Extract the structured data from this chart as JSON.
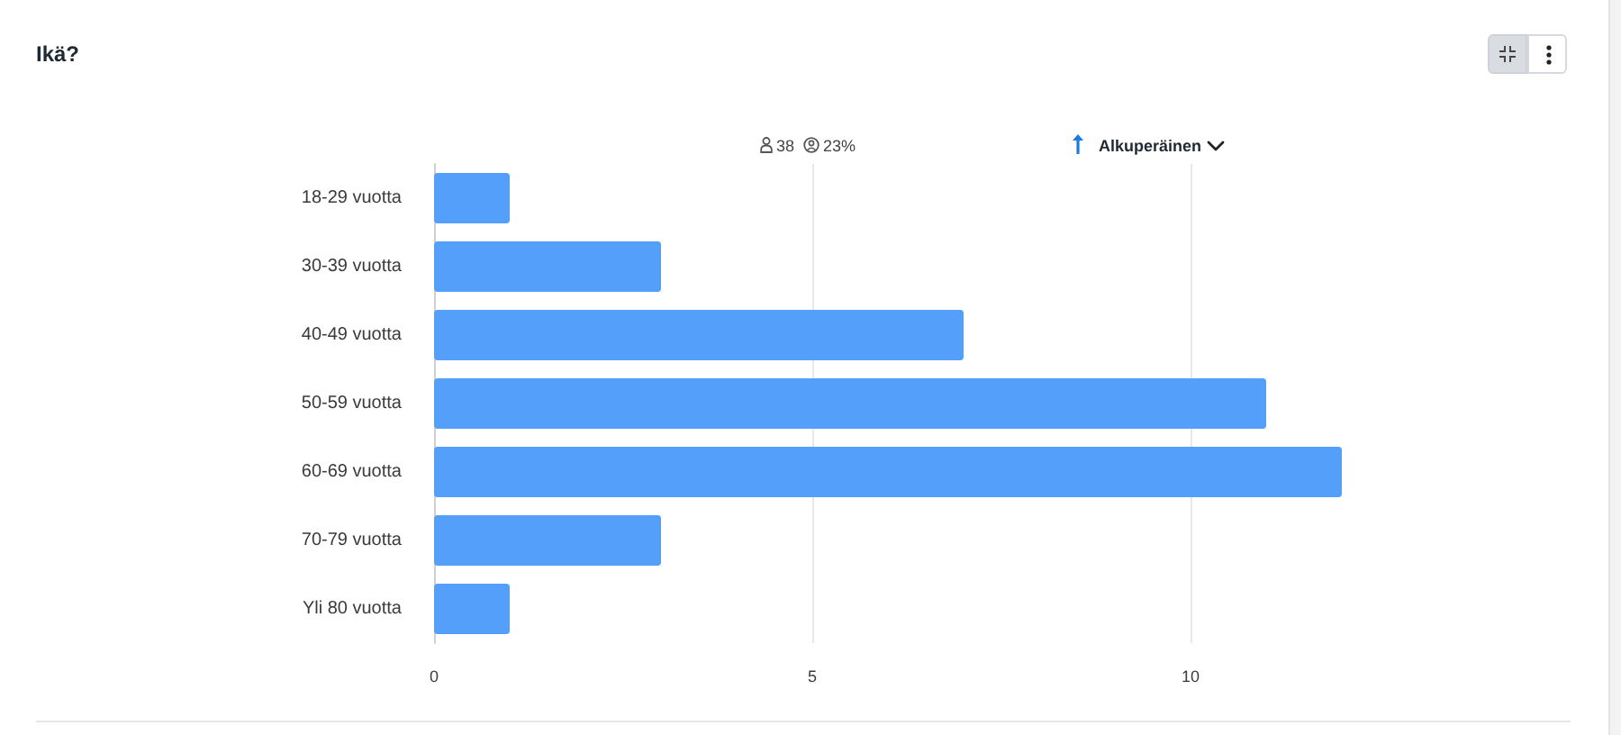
{
  "chart_data": {
    "type": "bar",
    "orientation": "horizontal",
    "title": "Ikä?",
    "categories": [
      "18-29 vuotta",
      "30-39 vuotta",
      "40-49 vuotta",
      "50-59 vuotta",
      "60-69 vuotta",
      "70-79 vuotta",
      "Yli 80 vuotta"
    ],
    "values": [
      1,
      3,
      7,
      11,
      12,
      3,
      1
    ],
    "color": "#539ff9",
    "xlim": [
      0,
      12
    ],
    "xticks": [
      0,
      5,
      10
    ],
    "grid": "x",
    "annotations": [
      "38",
      "23%",
      "Alkuperäinen"
    ]
  }
}
